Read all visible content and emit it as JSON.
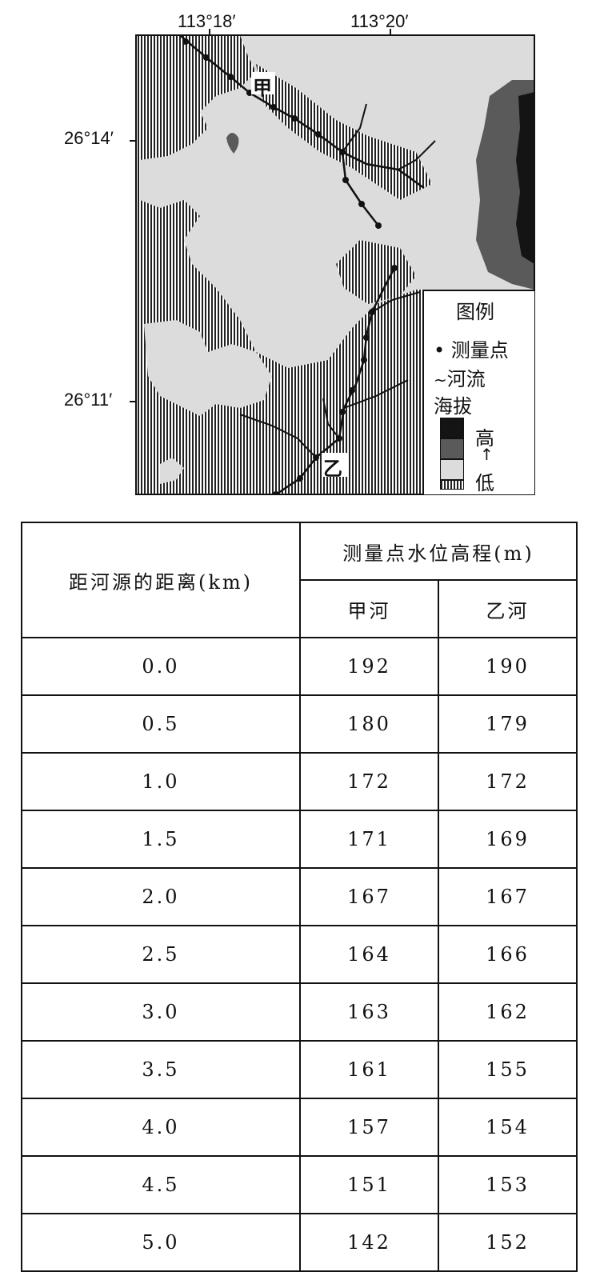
{
  "map": {
    "lon_labels": [
      "113°18′",
      "113°20′"
    ],
    "lat_labels": [
      "26°14′",
      "26°11′"
    ],
    "river_labels": {
      "jia": "甲",
      "yi": "乙"
    },
    "legend": {
      "title": "图例",
      "items": {
        "measure_point": "测量点",
        "river": "河流",
        "elevation": "海拔"
      },
      "scale": {
        "high": "高",
        "arrow": "↑",
        "low": "低"
      }
    },
    "colors": {
      "high": "#141414",
      "mid": "#5a5a5a",
      "low_light": "#dcdcdc",
      "lowest_hatch": "#222222"
    }
  },
  "table": {
    "header": {
      "distance": "距河源的距离(km)",
      "elevation": "测量点水位高程(m)",
      "jia": "甲河",
      "yi": "乙河"
    },
    "rows": [
      {
        "d": "0.0",
        "jia": "192",
        "yi": "190"
      },
      {
        "d": "0.5",
        "jia": "180",
        "yi": "179"
      },
      {
        "d": "1.0",
        "jia": "172",
        "yi": "172"
      },
      {
        "d": "1.5",
        "jia": "171",
        "yi": "169"
      },
      {
        "d": "2.0",
        "jia": "167",
        "yi": "167"
      },
      {
        "d": "2.5",
        "jia": "164",
        "yi": "166"
      },
      {
        "d": "3.0",
        "jia": "163",
        "yi": "162"
      },
      {
        "d": "3.5",
        "jia": "161",
        "yi": "155"
      },
      {
        "d": "4.0",
        "jia": "157",
        "yi": "154"
      },
      {
        "d": "4.5",
        "jia": "151",
        "yi": "153"
      },
      {
        "d": "5.0",
        "jia": "142",
        "yi": "152"
      }
    ]
  }
}
